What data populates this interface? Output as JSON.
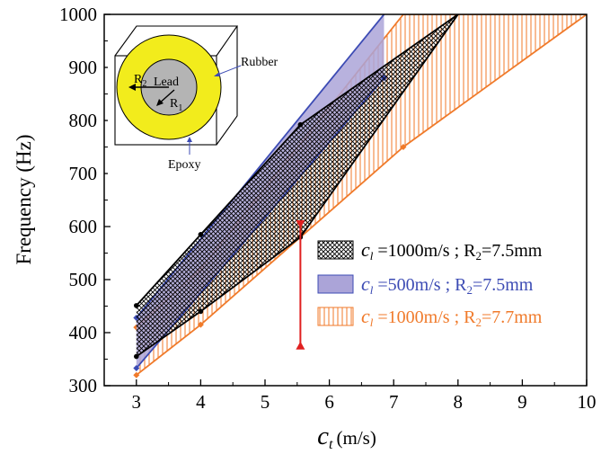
{
  "chart_data": {
    "type": "area",
    "title": "",
    "xlabel": {
      "symbol": "c",
      "subscript": "t",
      "unit": "(m/s)"
    },
    "ylabel": "Frequency (Hz)",
    "xlim": [
      2.5,
      10
    ],
    "ylim": [
      300,
      1000
    ],
    "xticks": [
      "3",
      "4",
      "5",
      "6",
      "7",
      "8",
      "9",
      "10"
    ],
    "yticks": [
      "300",
      "400",
      "500",
      "600",
      "700",
      "800",
      "900",
      "1000"
    ],
    "series": [
      {
        "name": {
          "symbol": "c",
          "subscript": "l",
          "rest": " =1000m/s ; R",
          "sub2": "2",
          "tail": "=7.5mm"
        },
        "color": "#000000",
        "fill": "crosshatch",
        "x": [
          3,
          4,
          5.55,
          8
        ],
        "upper": [
          451,
          585,
          792,
          1000
        ],
        "lower": [
          355,
          440,
          580,
          1000
        ]
      },
      {
        "name": {
          "symbol": "c",
          "subscript": "l",
          "rest": " =500m/s ; R",
          "sub2": "2",
          "tail": "=7.5mm"
        },
        "color": "#3c4bb4",
        "fill": "#aba4d8",
        "x": [
          3,
          6.85
        ],
        "upper": [
          428,
          1000
        ],
        "lower": [
          333,
          880
        ]
      },
      {
        "name": {
          "symbol": "c",
          "subscript": "l",
          "rest": " =1000m/s ; R",
          "sub2": "2",
          "tail": "=7.7mm"
        },
        "color": "#f07a2a",
        "fill": "vertical-lines",
        "x": [
          3,
          4,
          7.15,
          10
        ],
        "upper": [
          410,
          520,
          1000,
          1000
        ],
        "lower": [
          320,
          415,
          750,
          1000
        ]
      }
    ],
    "marker_line": {
      "x": 5.55,
      "y_top": 605,
      "y_bottom": 375,
      "color": "#e02020"
    },
    "legend": {
      "placement": "center-right"
    },
    "inset": {
      "labels": {
        "lead": "Lead",
        "rubber": "Rubber",
        "epoxy": "Epoxy",
        "r1": "R",
        "r1_sub": "1",
        "r2": "R",
        "r2_sub": "2"
      },
      "colors": {
        "rubber": "#f2ec1c",
        "lead": "#b4b4b4"
      }
    }
  }
}
